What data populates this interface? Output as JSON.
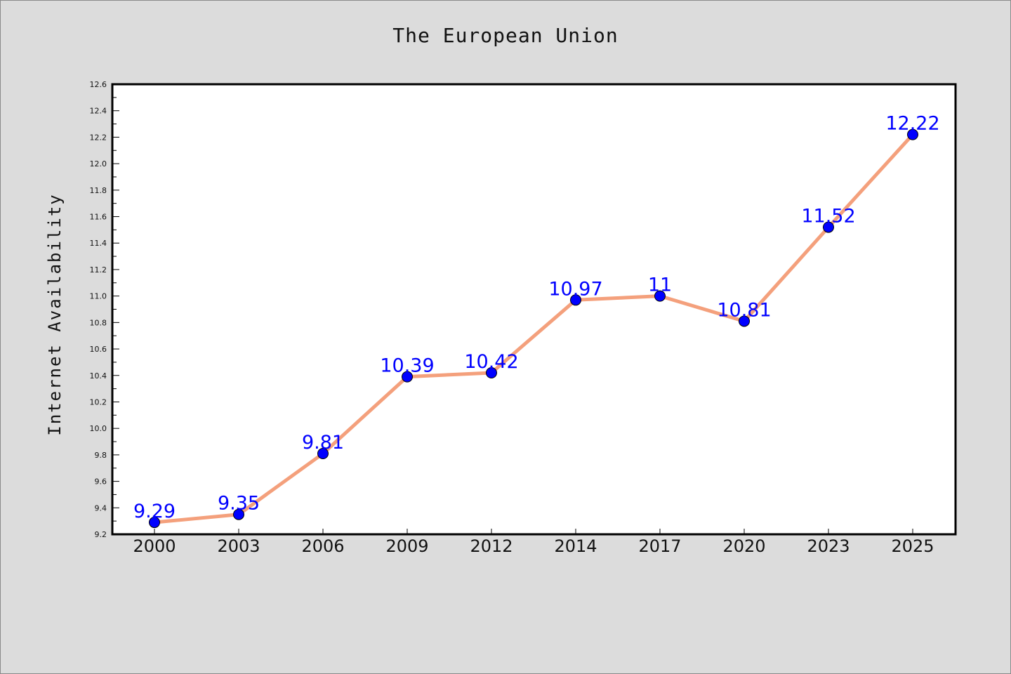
{
  "chart_data": {
    "type": "line",
    "title": "The European Union",
    "xlabel": "",
    "ylabel": "Internet Availability",
    "categories": [
      "2000",
      "2003",
      "2006",
      "2009",
      "2012",
      "2014",
      "2017",
      "2020",
      "2023",
      "2025"
    ],
    "series": [
      {
        "values": [
          9.29,
          9.35,
          9.81,
          10.39,
          10.42,
          10.97,
          11,
          10.81,
          11.52,
          12.22
        ]
      }
    ],
    "data_labels": [
      "9.29",
      "9.35",
      "9.81",
      "10.39",
      "10.42",
      "10.97",
      "11",
      "10.81",
      "11.52",
      "12.22"
    ],
    "ylim": [
      9.2,
      12.6
    ],
    "y_ticks": [
      "9.2",
      "9.4",
      "9.6",
      "9.8",
      "10.0",
      "10.2",
      "10.4",
      "10.6",
      "10.8",
      "11.0",
      "11.2",
      "11.4",
      "11.6",
      "11.8",
      "12.0",
      "12.2",
      "12.4",
      "12.6"
    ],
    "grid": false,
    "colors": {
      "line": "#f4a07c",
      "marker": "#0000ff",
      "data_label": "#0000ff",
      "plot_background": "#ffffff",
      "figure_background": "#dcdcdc"
    }
  }
}
